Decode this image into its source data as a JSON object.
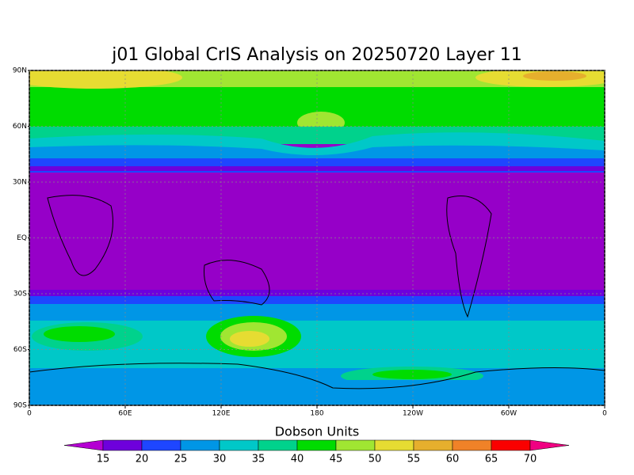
{
  "map": {
    "title": "j01 Global CrIS Analysis on 20250720 Layer 11",
    "xlim": [
      0,
      360
    ],
    "ylim": [
      -90,
      90
    ],
    "xticks": [
      {
        "value": 0,
        "label": "0"
      },
      {
        "value": 60,
        "label": "60E"
      },
      {
        "value": 120,
        "label": "120E"
      },
      180,
      {
        "value": 240,
        "label": "120W"
      },
      {
        "value": 300,
        "label": "60W"
      },
      {
        "value": 360,
        "label": "0"
      }
    ],
    "yticks": [
      {
        "value": 90,
        "label": "90N"
      },
      {
        "value": 60,
        "label": "60N"
      },
      {
        "value": 30,
        "label": "30N"
      },
      {
        "value": 0,
        "label": "EQ"
      },
      {
        "value": -30,
        "label": "30S"
      },
      {
        "value": -60,
        "label": "60S"
      },
      {
        "value": -90,
        "label": "90S"
      }
    ],
    "grid": true
  },
  "colorbar": {
    "label": "Dobson Units",
    "levels": [
      15,
      20,
      25,
      30,
      35,
      40,
      45,
      50,
      55,
      60,
      65,
      70
    ],
    "colors": [
      "#b400d2",
      "#6e00dc",
      "#1e46ff",
      "#0096e6",
      "#00c8c8",
      "#00d28c",
      "#00dc00",
      "#a0e632",
      "#e6dc32",
      "#e6af2d",
      "#f08228",
      "#fa0000",
      "#f00082"
    ]
  }
}
